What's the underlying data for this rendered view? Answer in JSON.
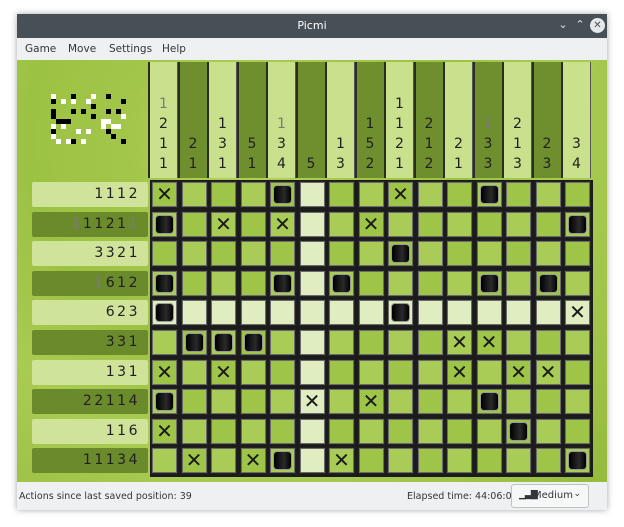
{
  "window": {
    "title": "Picmi"
  },
  "menu": [
    "Game",
    "Move",
    "Settings",
    "Help"
  ],
  "colors": {
    "titlebar": "#475057",
    "board_green": "#9fc548",
    "filled": "#000000"
  },
  "puzzle": {
    "columns": 15,
    "rows": 10,
    "cursor": {
      "row": 4,
      "col": 5
    },
    "column_clues": [
      [
        {
          "n": "1",
          "done": true
        },
        {
          "n": "2"
        },
        {
          "n": "1"
        },
        {
          "n": "1"
        }
      ],
      [
        {
          "n": "2"
        },
        {
          "n": "1"
        }
      ],
      [
        {
          "n": "1"
        },
        {
          "n": "3"
        },
        {
          "n": "1"
        }
      ],
      [
        {
          "n": "5"
        },
        {
          "n": "1"
        }
      ],
      [
        {
          "n": "1",
          "done": true
        },
        {
          "n": "3"
        },
        {
          "n": "4"
        }
      ],
      [
        {
          "n": "5"
        }
      ],
      [
        {
          "n": "1"
        },
        {
          "n": "3"
        }
      ],
      [
        {
          "n": "1"
        },
        {
          "n": "5"
        },
        {
          "n": "2"
        }
      ],
      [
        {
          "n": "1"
        },
        {
          "n": "1"
        },
        {
          "n": "2"
        },
        {
          "n": "1"
        }
      ],
      [
        {
          "n": "2"
        },
        {
          "n": "1"
        },
        {
          "n": "2"
        }
      ],
      [
        {
          "n": "2"
        },
        {
          "n": "1"
        }
      ],
      [
        {
          "n": "1",
          "done": true
        },
        {
          "n": "3"
        },
        {
          "n": "3"
        }
      ],
      [
        {
          "n": "2"
        },
        {
          "n": "1"
        },
        {
          "n": "3"
        }
      ],
      [
        {
          "n": "2"
        },
        {
          "n": "3"
        }
      ],
      [
        {
          "n": "3"
        },
        {
          "n": "4"
        }
      ]
    ],
    "row_clues": [
      [
        {
          "n": "1"
        },
        {
          "n": "1"
        },
        {
          "n": "1"
        },
        {
          "n": "2"
        }
      ],
      [
        {
          "n": "1",
          "done": true
        },
        {
          "n": "1"
        },
        {
          "n": "1"
        },
        {
          "n": "2"
        },
        {
          "n": "1"
        },
        {
          "n": "1",
          "done": true
        }
      ],
      [
        {
          "n": "3"
        },
        {
          "n": "3"
        },
        {
          "n": "2"
        },
        {
          "n": "1"
        }
      ],
      [
        {
          "n": "1",
          "done": true
        },
        {
          "n": "6"
        },
        {
          "n": "1"
        },
        {
          "n": "2"
        }
      ],
      [
        {
          "n": "6"
        },
        {
          "n": "2"
        },
        {
          "n": "3"
        }
      ],
      [
        {
          "n": "3"
        },
        {
          "n": "3"
        },
        {
          "n": "1"
        }
      ],
      [
        {
          "n": "1"
        },
        {
          "n": "3"
        },
        {
          "n": "1"
        }
      ],
      [
        {
          "n": "2"
        },
        {
          "n": "2"
        },
        {
          "n": "1"
        },
        {
          "n": "1"
        },
        {
          "n": "4"
        }
      ],
      [
        {
          "n": "1"
        },
        {
          "n": "1"
        },
        {
          "n": "6"
        }
      ],
      [
        {
          "n": "1"
        },
        {
          "n": "1"
        },
        {
          "n": "1"
        },
        {
          "n": "3"
        },
        {
          "n": "4"
        }
      ]
    ],
    "cells": [
      "x...#...x..#...",
      "#.x.x..x......#",
      "........#......",
      "#...#.#....#.#.",
      "#.......#.....x",
      ".###......xx...",
      "x.x.......x.xx.",
      "#....x.x...#...",
      "x...........#..",
      ".x.x#.x.......#"
    ]
  },
  "status": {
    "actions": "Actions since last saved position: 39",
    "elapsed": "Elapsed time: 44:06:01",
    "difficulty": "Medium",
    "difficulty_icon": "signal-bars-icon"
  }
}
